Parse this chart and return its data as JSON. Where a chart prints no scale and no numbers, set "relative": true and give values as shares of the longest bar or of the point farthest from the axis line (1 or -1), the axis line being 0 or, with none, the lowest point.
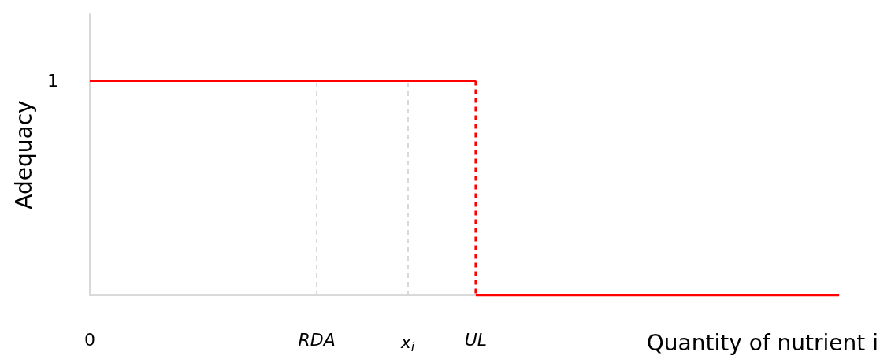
{
  "chart_data": {
    "type": "line",
    "xlabel": "Quantity of nutrient i",
    "ylabel": "Adequacy",
    "relative": true,
    "categories": [
      "0",
      null,
      null,
      null,
      null,
      null,
      null,
      null,
      null,
      null,
      "RDA",
      null,
      null,
      null,
      "x$_{i}$",
      null,
      null,
      "UL",
      null,
      null,
      null,
      null,
      null,
      null,
      null,
      null,
      null,
      null,
      null,
      null,
      null,
      null,
      null,
      null
    ],
    "series": [
      {
        "color": "#ff0000",
        "values": [
          1,
          1,
          1,
          1,
          1,
          1,
          1,
          1,
          1,
          1,
          1,
          1,
          1,
          1,
          1,
          1,
          1,
          1,
          null,
          null,
          null,
          null,
          null,
          null,
          null,
          null,
          null,
          null,
          null,
          null,
          null,
          null,
          null,
          null
        ],
        "line_style": "solid"
      },
      {
        "color": "#ff0000",
        "x": [
          "UL",
          "UL"
        ],
        "values": [
          1,
          0
        ],
        "line_style": "dashed"
      },
      {
        "color": "#ff0000",
        "values": [
          null,
          null,
          null,
          null,
          null,
          null,
          null,
          null,
          null,
          null,
          null,
          null,
          null,
          null,
          null,
          null,
          null,
          0,
          0,
          0,
          0,
          0,
          0,
          0,
          0,
          0,
          0,
          0,
          0,
          0,
          0,
          0,
          0,
          0
        ],
        "line_style": "solid"
      }
    ],
    "annotations": [
      "1"
    ],
    "ref_lines": [
      {
        "axis": "x",
        "value": "RDA",
        "color": "#d9d9d9",
        "line_style": "dashed"
      },
      {
        "axis": "x",
        "value": "x$_{i}$",
        "color": "#d9d9d9",
        "line_style": "dashed"
      }
    ],
    "grid": false,
    "marker": "none"
  }
}
